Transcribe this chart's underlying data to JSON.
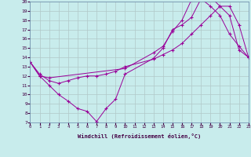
{
  "xlabel": "Windchill (Refroidissement éolien,°C)",
  "xlim": [
    0,
    23
  ],
  "ylim": [
    7,
    20
  ],
  "xticks": [
    0,
    1,
    2,
    3,
    4,
    5,
    6,
    7,
    8,
    9,
    10,
    11,
    12,
    13,
    14,
    15,
    16,
    17,
    18,
    19,
    20,
    21,
    22,
    23
  ],
  "yticks": [
    7,
    8,
    9,
    10,
    11,
    12,
    13,
    14,
    15,
    16,
    17,
    18,
    19,
    20
  ],
  "background_color": "#c8ecec",
  "line_color": "#990099",
  "grid_color": "#b0c8c8",
  "series": [
    {
      "x": [
        0,
        1,
        2,
        3,
        4,
        5,
        6,
        7,
        8,
        9,
        10,
        13,
        14,
        15,
        16,
        17,
        18,
        19,
        20,
        21,
        22,
        23
      ],
      "y": [
        13.5,
        12.0,
        11.0,
        10.0,
        9.3,
        8.5,
        8.2,
        7.1,
        8.5,
        9.5,
        12.2,
        13.9,
        15.0,
        17.0,
        17.5,
        18.3,
        20.3,
        19.5,
        18.5,
        16.5,
        15.2,
        14.0
      ]
    },
    {
      "x": [
        0,
        1,
        2,
        10,
        13,
        14,
        15,
        16,
        17,
        18,
        19,
        20,
        21,
        22,
        23
      ],
      "y": [
        13.5,
        12.0,
        11.8,
        12.8,
        14.5,
        15.2,
        16.8,
        18.0,
        20.2,
        20.3,
        20.5,
        19.5,
        18.5,
        14.8,
        14.0
      ]
    },
    {
      "x": [
        0,
        1,
        2,
        3,
        4,
        5,
        6,
        7,
        8,
        9,
        10,
        13,
        14,
        15,
        16,
        17,
        18,
        19,
        20,
        21,
        22,
        23
      ],
      "y": [
        13.5,
        12.2,
        11.5,
        11.2,
        11.5,
        11.8,
        12.0,
        12.0,
        12.2,
        12.5,
        13.0,
        13.8,
        14.3,
        14.8,
        15.5,
        16.5,
        17.5,
        18.5,
        19.5,
        19.5,
        17.5,
        14.0
      ]
    }
  ]
}
